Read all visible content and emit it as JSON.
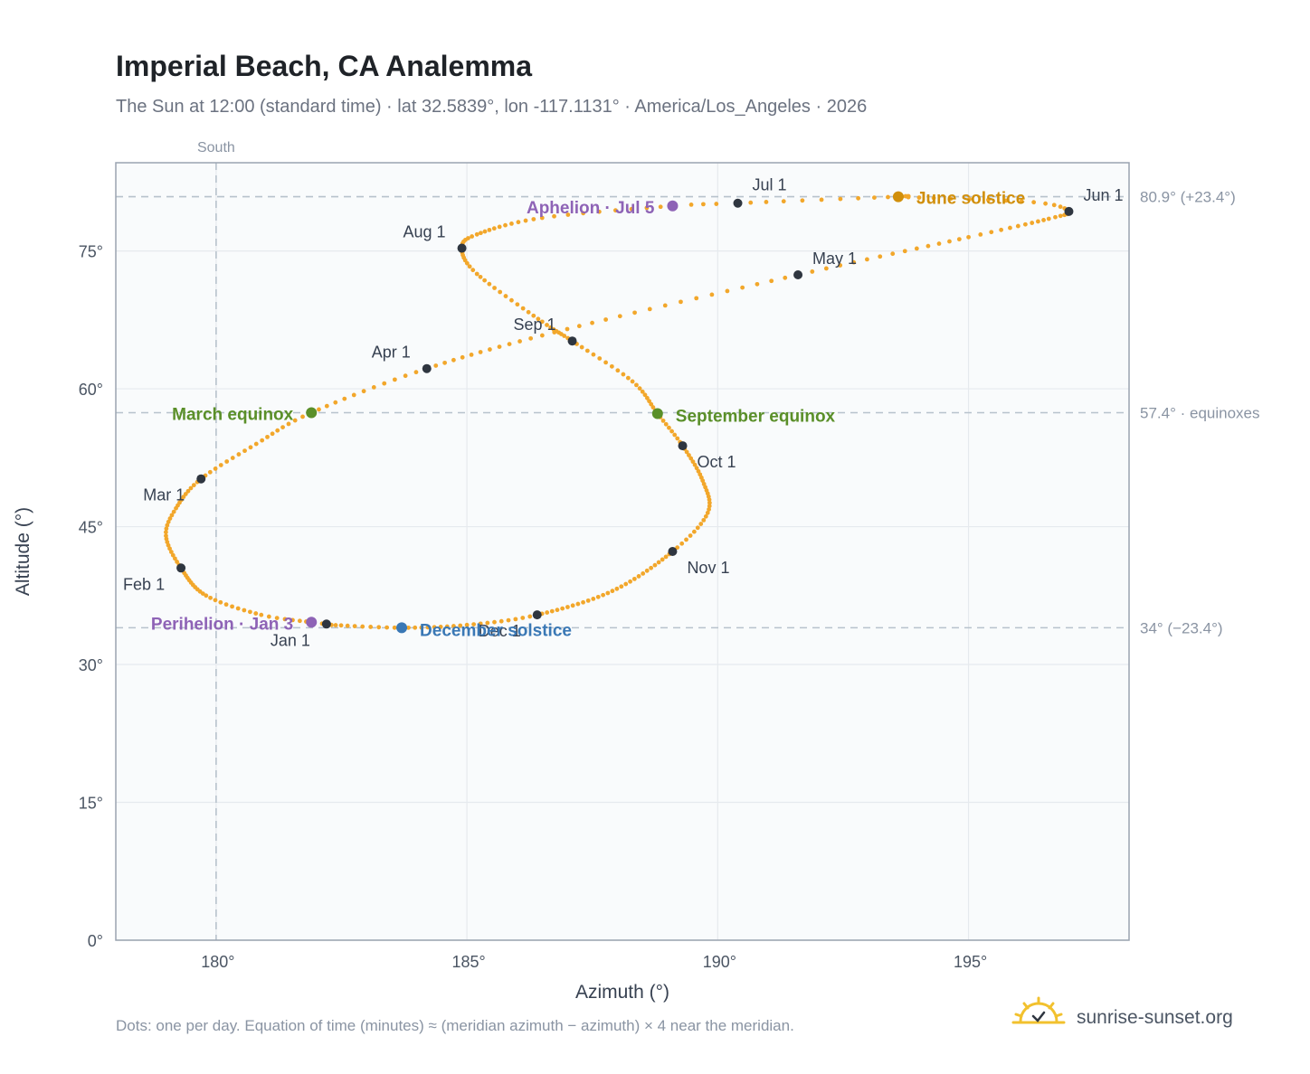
{
  "title": "Imperial Beach, CA Analemma",
  "subtitle": "The Sun at 12:00 (standard time) · lat 32.5839°, lon -117.1131° · America/Los_Angeles · 2026",
  "footer": "Dots: one per day. Equation of time (minutes) ≈ (meridian azimuth − azimuth) × 4 near the meridian.",
  "brand": "sunrise-sunset.org",
  "colors": {
    "path": "#f2a72b",
    "month": "#2f3640",
    "equinox": "#5a8f29",
    "june": "#d18f0b",
    "december": "#3a78b5",
    "apsis": "#8e63b6",
    "plot_bg": "#f9fbfc",
    "grid": "#e6eaee",
    "frame": "#9aa3b0",
    "ref_line": "#b7c2cc"
  },
  "chart_data": {
    "type": "scatter",
    "title": "Imperial Beach, CA Analemma",
    "xlabel": "Azimuth (°)",
    "ylabel": "Altitude (°)",
    "xlim": [
      178,
      198.2
    ],
    "ylim": [
      0,
      84.6
    ],
    "x_ticks": [
      180,
      185,
      190,
      195
    ],
    "x_tick_labels": [
      "180°",
      "185°",
      "190°",
      "195°"
    ],
    "y_ticks": [
      0,
      15,
      30,
      45,
      60,
      75
    ],
    "y_tick_labels": [
      "0°",
      "15°",
      "30°",
      "45°",
      "60°",
      "75°"
    ],
    "grid": true,
    "meridian": {
      "x": 180,
      "label": "South"
    },
    "reference_lines": [
      {
        "y": 80.9,
        "label": "80.9° (+23.4°)"
      },
      {
        "y": 57.4,
        "label": "57.4° · equinoxes"
      },
      {
        "y": 34.0,
        "label": "34° (−23.4°)"
      }
    ],
    "path_anchors": [
      {
        "day": 1,
        "az": 182.2,
        "alt": 34.4
      },
      {
        "day": 3,
        "az": 181.9,
        "alt": 34.6
      },
      {
        "day": 10,
        "az": 180.9,
        "alt": 35.4
      },
      {
        "day": 20,
        "az": 179.8,
        "alt": 37.5
      },
      {
        "day": 32,
        "az": 179.3,
        "alt": 40.5
      },
      {
        "day": 42,
        "az": 179.0,
        "alt": 44.0
      },
      {
        "day": 50,
        "az": 179.2,
        "alt": 47.0
      },
      {
        "day": 60,
        "az": 179.7,
        "alt": 50.2
      },
      {
        "day": 70,
        "az": 180.8,
        "alt": 54.0
      },
      {
        "day": 79,
        "az": 181.9,
        "alt": 57.4
      },
      {
        "day": 91,
        "az": 184.2,
        "alt": 62.2
      },
      {
        "day": 105,
        "az": 187.0,
        "alt": 66.5
      },
      {
        "day": 121,
        "az": 191.6,
        "alt": 72.4
      },
      {
        "day": 135,
        "az": 195.0,
        "alt": 76.5
      },
      {
        "day": 145,
        "az": 196.6,
        "alt": 78.5
      },
      {
        "day": 152,
        "az": 197.0,
        "alt": 79.3
      },
      {
        "day": 158,
        "az": 196.3,
        "alt": 80.3
      },
      {
        "day": 166,
        "az": 193.8,
        "alt": 80.85
      },
      {
        "day": 172,
        "az": 193.6,
        "alt": 80.9
      },
      {
        "day": 182,
        "az": 190.4,
        "alt": 80.2
      },
      {
        "day": 186,
        "az": 189.1,
        "alt": 79.9
      },
      {
        "day": 195,
        "az": 186.5,
        "alt": 78.6
      },
      {
        "day": 206,
        "az": 185.2,
        "alt": 76.8
      },
      {
        "day": 213,
        "az": 184.9,
        "alt": 75.3
      },
      {
        "day": 222,
        "az": 185.2,
        "alt": 72.5
      },
      {
        "day": 235,
        "az": 186.5,
        "alt": 67.3
      },
      {
        "day": 244,
        "az": 187.1,
        "alt": 65.2
      },
      {
        "day": 255,
        "az": 188.3,
        "alt": 60.8
      },
      {
        "day": 265,
        "az": 188.8,
        "alt": 57.3
      },
      {
        "day": 274,
        "az": 189.3,
        "alt": 53.8
      },
      {
        "day": 285,
        "az": 189.7,
        "alt": 50.0
      },
      {
        "day": 295,
        "az": 189.8,
        "alt": 46.5
      },
      {
        "day": 305,
        "az": 189.1,
        "alt": 42.3
      },
      {
        "day": 320,
        "az": 187.9,
        "alt": 38.0
      },
      {
        "day": 335,
        "az": 186.4,
        "alt": 35.4
      },
      {
        "day": 345,
        "az": 185.0,
        "alt": 34.3
      },
      {
        "day": 355,
        "az": 183.7,
        "alt": 34.0
      },
      {
        "day": 365,
        "az": 182.3,
        "alt": 34.3
      }
    ],
    "months": [
      {
        "label": "Jan 1",
        "az": 182.2,
        "alt": 34.4
      },
      {
        "label": "Feb 1",
        "az": 179.3,
        "alt": 40.5
      },
      {
        "label": "Mar 1",
        "az": 179.7,
        "alt": 50.2
      },
      {
        "label": "Apr 1",
        "az": 184.2,
        "alt": 62.2
      },
      {
        "label": "May 1",
        "az": 191.6,
        "alt": 72.4
      },
      {
        "label": "Jun 1",
        "az": 197.0,
        "alt": 79.3
      },
      {
        "label": "Jul 1",
        "az": 190.4,
        "alt": 80.2
      },
      {
        "label": "Aug 1",
        "az": 184.9,
        "alt": 75.3
      },
      {
        "label": "Sep 1",
        "az": 187.1,
        "alt": 65.2
      },
      {
        "label": "Oct 1",
        "az": 189.3,
        "alt": 53.8
      },
      {
        "label": "Nov 1",
        "az": 189.1,
        "alt": 42.3
      },
      {
        "label": "Dec 1",
        "az": 186.4,
        "alt": 35.4
      }
    ],
    "events": [
      {
        "label": "March equinox",
        "az": 181.9,
        "alt": 57.4,
        "kind": "equinox"
      },
      {
        "label": "September equinox",
        "az": 188.8,
        "alt": 57.3,
        "kind": "equinox"
      },
      {
        "label": "June solstice",
        "az": 193.6,
        "alt": 80.9,
        "kind": "june"
      },
      {
        "label": "December solstice",
        "az": 183.7,
        "alt": 34.0,
        "kind": "december"
      },
      {
        "label": "Perihelion · Jan 3",
        "az": 181.9,
        "alt": 34.6,
        "kind": "apsis"
      },
      {
        "label": "Aphelion · Jul 5",
        "az": 189.1,
        "alt": 79.9,
        "kind": "apsis"
      }
    ]
  }
}
